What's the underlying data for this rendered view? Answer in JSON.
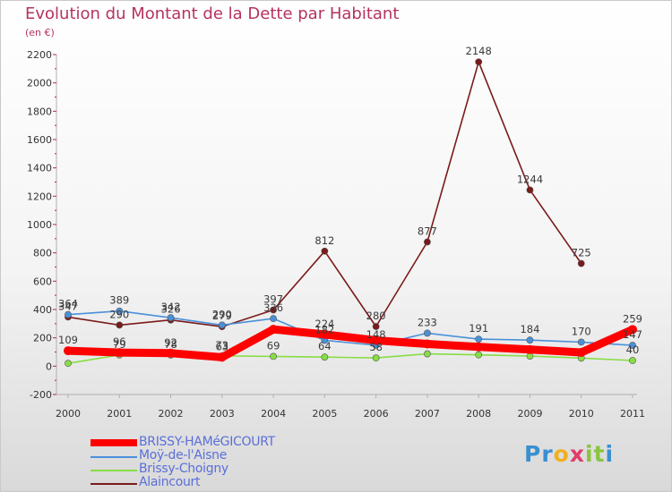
{
  "header": {
    "title": "Evolution du Montant de la Dette par Habitant",
    "unit": "(en €)"
  },
  "chart_data": {
    "type": "line",
    "x": [
      "2000",
      "2001",
      "2002",
      "2003",
      "2004",
      "2005",
      "2006",
      "2007",
      "2008",
      "2009",
      "2010",
      "2011"
    ],
    "ylim": [
      -200,
      2200
    ],
    "yticks": [
      "-200",
      "0",
      "200",
      "400",
      "600",
      "800",
      "1000",
      "1200",
      "1400",
      "1600",
      "1800",
      "2000",
      "2200"
    ],
    "grid": false,
    "legend_position": "bottom-left",
    "series": [
      {
        "name": "BRISSY-HAMéGICOURT",
        "color": "#ff0000",
        "values": [
          109,
          96,
          92,
          63,
          260,
          224,
          182,
          157,
          136,
          117,
          97,
          259
        ],
        "labels": [
          "109",
          "96",
          "92",
          "63",
          "",
          "224",
          "",
          "",
          "",
          "",
          "",
          "259"
        ]
      },
      {
        "name": "Moÿ-de-l'Aisne",
        "color": "#4a90d9",
        "values": [
          364,
          389,
          342,
          290,
          336,
          182,
          148,
          233,
          191,
          184,
          170,
          147
        ],
        "labels": [
          "364",
          "389",
          "342",
          "290",
          "336",
          "182",
          "148",
          "233",
          "191",
          "184",
          "170",
          "147"
        ]
      },
      {
        "name": "Brissy-Choigny",
        "color": "#88dd44",
        "values": [
          20,
          79,
          78,
          73,
          69,
          64,
          58,
          87,
          80,
          71,
          57,
          40
        ],
        "labels": [
          "",
          "79",
          "78",
          "73",
          "69",
          "64",
          "58",
          "",
          "",
          "",
          "",
          "40"
        ]
      },
      {
        "name": "Alaincourt",
        "color": "#7a1a1a",
        "values": [
          347,
          290,
          326,
          279,
          397,
          812,
          280,
          877,
          2148,
          1244,
          725,
          null
        ],
        "labels": [
          "347",
          "290",
          "326",
          "279",
          "397",
          "812",
          "280",
          "877",
          "2148",
          "1244",
          "725",
          ""
        ]
      }
    ]
  },
  "logo": {
    "letters": [
      "P",
      "r",
      "o",
      "x",
      "i",
      "t",
      "i"
    ]
  }
}
